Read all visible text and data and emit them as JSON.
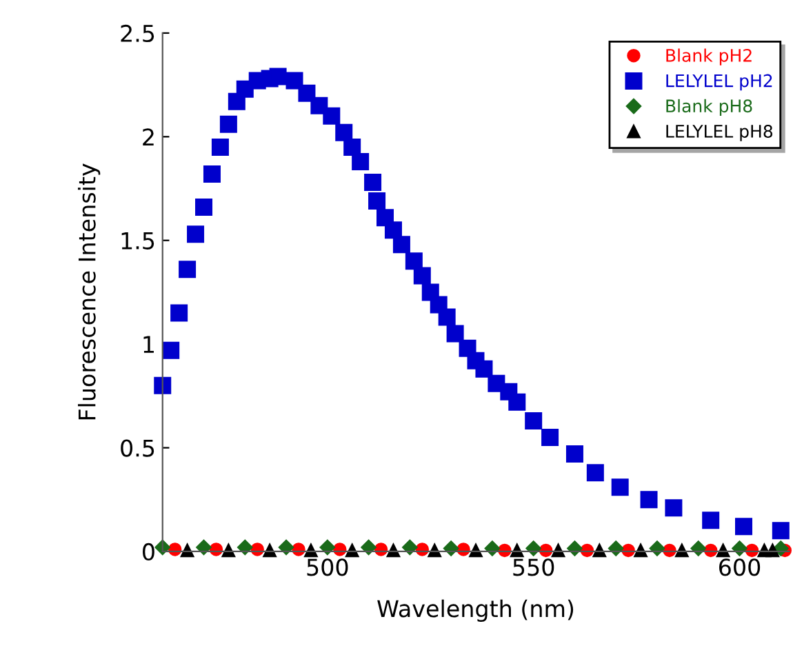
{
  "chart_data": {
    "type": "scatter",
    "xlabel": "Wavelength (nm)",
    "ylabel": "Fluorescence Intensity",
    "xlim": [
      460,
      612
    ],
    "ylim": [
      0,
      2.5
    ],
    "xticks": [
      500,
      550,
      600
    ],
    "yticks": [
      0,
      0.5,
      1,
      1.5,
      2,
      2.5
    ],
    "grid": false,
    "legend": "top right",
    "series": [
      {
        "name": "Blank pH2",
        "color": "#ff0000",
        "marker": "circle",
        "x": [
          463,
          473,
          483,
          493,
          503,
          513,
          523,
          533,
          543,
          553,
          563,
          573,
          583,
          593,
          603,
          611
        ],
        "values": [
          0.01,
          0.01,
          0.01,
          0.01,
          0.01,
          0.01,
          0.01,
          0.01,
          0.005,
          0.005,
          0.005,
          0.005,
          0.005,
          0.005,
          0.005,
          0.005
        ]
      },
      {
        "name": "LELYLEL pH2",
        "color": "#0000cc",
        "marker": "square",
        "x": [
          460,
          462,
          464,
          466,
          468,
          470,
          472,
          474,
          476,
          478,
          480,
          483,
          486,
          488,
          492,
          495,
          498,
          501,
          504,
          506,
          508,
          511,
          512,
          514,
          516,
          518,
          521,
          523,
          525,
          527,
          529,
          531,
          534,
          536,
          538,
          541,
          544,
          546,
          550,
          554,
          560,
          565,
          571,
          578,
          584,
          593,
          601,
          610
        ],
        "values": [
          0.8,
          0.97,
          1.15,
          1.36,
          1.53,
          1.66,
          1.82,
          1.95,
          2.06,
          2.17,
          2.23,
          2.27,
          2.28,
          2.29,
          2.27,
          2.21,
          2.15,
          2.1,
          2.02,
          1.95,
          1.88,
          1.78,
          1.69,
          1.61,
          1.55,
          1.48,
          1.4,
          1.33,
          1.25,
          1.19,
          1.13,
          1.05,
          0.98,
          0.92,
          0.88,
          0.81,
          0.77,
          0.72,
          0.63,
          0.55,
          0.47,
          0.38,
          0.31,
          0.25,
          0.21,
          0.15,
          0.12,
          0.1
        ]
      },
      {
        "name": "Blank pH8",
        "color": "#1a6b1a",
        "marker": "diamond",
        "x": [
          460,
          470,
          480,
          490,
          500,
          510,
          520,
          530,
          540,
          550,
          560,
          570,
          580,
          590,
          600,
          610
        ],
        "values": [
          0.02,
          0.02,
          0.02,
          0.02,
          0.02,
          0.02,
          0.02,
          0.015,
          0.015,
          0.015,
          0.015,
          0.015,
          0.015,
          0.015,
          0.015,
          0.015
        ]
      },
      {
        "name": "LELYLEL pH8",
        "color": "#000000",
        "marker": "triangle",
        "x": [
          466,
          476,
          486,
          496,
          506,
          516,
          526,
          536,
          546,
          556,
          566,
          576,
          586,
          596,
          606,
          608
        ],
        "values": [
          0.005,
          0.005,
          0.005,
          0.005,
          0.005,
          0.005,
          0.005,
          0.005,
          0.005,
          0.005,
          0.005,
          0.005,
          0.005,
          0.005,
          0.005,
          0.005
        ]
      }
    ]
  }
}
